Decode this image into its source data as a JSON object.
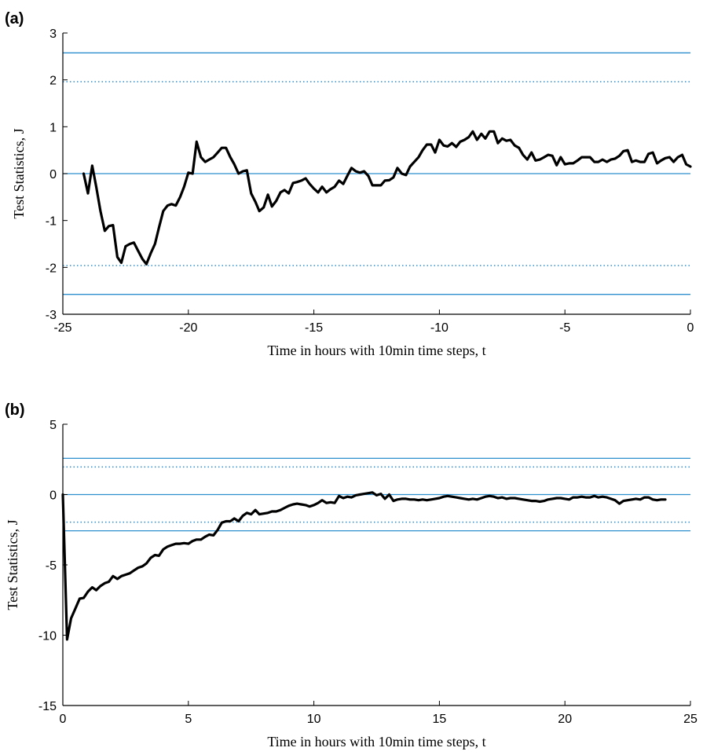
{
  "chart_data": [
    {
      "panel": "(a)",
      "type": "line",
      "xlabel": "Time in hours with 10min time steps, t",
      "ylabel": "Test Statistics, J",
      "xlim": [
        -25,
        0
      ],
      "ylim": [
        -3,
        3
      ],
      "xticks": [
        "-25",
        "-20",
        "-15",
        "-10",
        "-5",
        "0"
      ],
      "xtick_values": [
        -25,
        -20,
        -15,
        -10,
        -5,
        0
      ],
      "yticks": [
        "-3",
        "-2",
        "-1",
        "0",
        "1",
        "2",
        "3"
      ],
      "ytick_values": [
        -3,
        -2,
        -1,
        0,
        1,
        2,
        3
      ],
      "reference_lines": [
        {
          "y": 2.576,
          "style": "solid"
        },
        {
          "y": 1.96,
          "style": "dotted"
        },
        {
          "y": 0,
          "style": "solid"
        },
        {
          "y": -1.96,
          "style": "dotted"
        },
        {
          "y": -2.576,
          "style": "solid"
        }
      ],
      "series_color": "#000000",
      "reference_color": "#2e8fcf",
      "x": [
        -24.17,
        -24.0,
        -23.83,
        -23.67,
        -23.5,
        -23.33,
        -23.17,
        -23.0,
        -22.83,
        -22.67,
        -22.5,
        -22.33,
        -22.17,
        -22.0,
        -21.83,
        -21.67,
        -21.5,
        -21.33,
        -21.17,
        -21.0,
        -20.83,
        -20.67,
        -20.5,
        -20.33,
        -20.17,
        -20.0,
        -19.83,
        -19.67,
        -19.5,
        -19.33,
        -19.17,
        -19.0,
        -18.83,
        -18.67,
        -18.5,
        -18.33,
        -18.17,
        -18.0,
        -17.83,
        -17.67,
        -17.5,
        -17.33,
        -17.17,
        -17.0,
        -16.83,
        -16.67,
        -16.5,
        -16.33,
        -16.17,
        -16.0,
        -15.83,
        -15.67,
        -15.5,
        -15.33,
        -15.17,
        -15.0,
        -14.83,
        -14.67,
        -14.5,
        -14.33,
        -14.17,
        -14.0,
        -13.83,
        -13.67,
        -13.5,
        -13.33,
        -13.17,
        -13.0,
        -12.83,
        -12.67,
        -12.5,
        -12.33,
        -12.17,
        -12.0,
        -11.83,
        -11.67,
        -11.5,
        -11.33,
        -11.17,
        -11.0,
        -10.83,
        -10.67,
        -10.5,
        -10.33,
        -10.17,
        -10.0,
        -9.83,
        -9.67,
        -9.5,
        -9.33,
        -9.17,
        -9.0,
        -8.83,
        -8.67,
        -8.5,
        -8.33,
        -8.17,
        -8.0,
        -7.83,
        -7.67,
        -7.5,
        -7.33,
        -7.17,
        -7.0,
        -6.83,
        -6.67,
        -6.5,
        -6.33,
        -6.17,
        -6.0,
        -5.83,
        -5.67,
        -5.5,
        -5.33,
        -5.17,
        -5.0,
        -4.83,
        -4.67,
        -4.5,
        -4.33,
        -4.17,
        -4.0,
        -3.83,
        -3.67,
        -3.5,
        -3.33,
        -3.17,
        -3.0,
        -2.83,
        -2.67,
        -2.5,
        -2.33,
        -2.17,
        -2.0,
        -1.83,
        -1.67,
        -1.5,
        -1.33,
        -1.17,
        -1.0,
        -0.83,
        -0.67,
        -0.5,
        -0.33,
        -0.17,
        0.0
      ],
      "y": [
        0.0,
        -0.42,
        0.17,
        -0.28,
        -0.8,
        -1.22,
        -1.12,
        -1.1,
        -1.78,
        -1.9,
        -1.55,
        -1.5,
        -1.47,
        -1.65,
        -1.82,
        -1.93,
        -1.7,
        -1.5,
        -1.15,
        -0.8,
        -0.68,
        -0.65,
        -0.68,
        -0.5,
        -0.28,
        0.02,
        0.0,
        0.68,
        0.35,
        0.25,
        0.3,
        0.35,
        0.45,
        0.55,
        0.55,
        0.35,
        0.2,
        0.0,
        0.05,
        0.07,
        -0.42,
        -0.6,
        -0.8,
        -0.72,
        -0.45,
        -0.7,
        -0.58,
        -0.4,
        -0.35,
        -0.42,
        -0.2,
        -0.18,
        -0.15,
        -0.1,
        -0.22,
        -0.32,
        -0.4,
        -0.28,
        -0.4,
        -0.33,
        -0.28,
        -0.15,
        -0.22,
        -0.05,
        0.12,
        0.05,
        0.02,
        0.05,
        -0.05,
        -0.25,
        -0.25,
        -0.25,
        -0.15,
        -0.14,
        -0.08,
        0.12,
        0.0,
        -0.03,
        0.15,
        0.25,
        0.35,
        0.5,
        0.62,
        0.62,
        0.45,
        0.72,
        0.6,
        0.58,
        0.65,
        0.57,
        0.68,
        0.72,
        0.78,
        0.9,
        0.72,
        0.85,
        0.75,
        0.9,
        0.9,
        0.65,
        0.75,
        0.7,
        0.72,
        0.6,
        0.55,
        0.4,
        0.3,
        0.45,
        0.28,
        0.3,
        0.35,
        0.4,
        0.38,
        0.18,
        0.35,
        0.2,
        0.22,
        0.22,
        0.28,
        0.35,
        0.35,
        0.35,
        0.25,
        0.25,
        0.3,
        0.25,
        0.3,
        0.32,
        0.38,
        0.48,
        0.5,
        0.25,
        0.28,
        0.25,
        0.25,
        0.42,
        0.45,
        0.22,
        0.28,
        0.33,
        0.35,
        0.25,
        0.35,
        0.4,
        0.2,
        0.15
      ]
    },
    {
      "panel": "(b)",
      "type": "line",
      "xlabel": "Time in hours with 10min time steps, t",
      "ylabel": "Test Statistics, J",
      "xlim": [
        0,
        25
      ],
      "ylim": [
        -15,
        5
      ],
      "xticks": [
        "0",
        "5",
        "10",
        "15",
        "20",
        "25"
      ],
      "xtick_values": [
        0,
        5,
        10,
        15,
        20,
        25
      ],
      "yticks": [
        "-15",
        "-10",
        "-5",
        "0",
        "5"
      ],
      "ytick_values": [
        -15,
        -10,
        -5,
        0,
        5
      ],
      "reference_lines": [
        {
          "y": 2.576,
          "style": "solid"
        },
        {
          "y": 1.96,
          "style": "dotted"
        },
        {
          "y": 0,
          "style": "solid"
        },
        {
          "y": -1.96,
          "style": "dotted"
        },
        {
          "y": -2.576,
          "style": "solid"
        }
      ],
      "series_color": "#000000",
      "reference_color": "#2e8fcf",
      "x": [
        0.0,
        0.17,
        0.33,
        0.5,
        0.67,
        0.83,
        1.0,
        1.17,
        1.33,
        1.5,
        1.67,
        1.83,
        2.0,
        2.17,
        2.33,
        2.5,
        2.67,
        2.83,
        3.0,
        3.17,
        3.33,
        3.5,
        3.67,
        3.83,
        4.0,
        4.17,
        4.33,
        4.5,
        4.67,
        4.83,
        5.0,
        5.17,
        5.33,
        5.5,
        5.67,
        5.83,
        6.0,
        6.17,
        6.33,
        6.5,
        6.67,
        6.83,
        7.0,
        7.17,
        7.33,
        7.5,
        7.67,
        7.83,
        8.0,
        8.17,
        8.33,
        8.5,
        8.67,
        8.83,
        9.0,
        9.17,
        9.33,
        9.5,
        9.67,
        9.83,
        10.0,
        10.17,
        10.33,
        10.5,
        10.67,
        10.83,
        11.0,
        11.17,
        11.33,
        11.5,
        11.67,
        11.83,
        12.0,
        12.17,
        12.33,
        12.5,
        12.67,
        12.83,
        13.0,
        13.17,
        13.33,
        13.5,
        13.67,
        13.83,
        14.0,
        14.17,
        14.33,
        14.5,
        14.67,
        14.83,
        15.0,
        15.17,
        15.33,
        15.5,
        15.67,
        15.83,
        16.0,
        16.17,
        16.33,
        16.5,
        16.67,
        16.83,
        17.0,
        17.17,
        17.33,
        17.5,
        17.67,
        17.83,
        18.0,
        18.17,
        18.33,
        18.5,
        18.67,
        18.83,
        19.0,
        19.17,
        19.33,
        19.5,
        19.67,
        19.83,
        20.0,
        20.17,
        20.33,
        20.5,
        20.67,
        20.83,
        21.0,
        21.17,
        21.33,
        21.5,
        21.67,
        21.83,
        22.0,
        22.17,
        22.33,
        22.5,
        22.67,
        22.83,
        23.0,
        23.17,
        23.33,
        23.5,
        23.67,
        23.83,
        24.0
      ],
      "y": [
        0.0,
        -10.3,
        -8.8,
        -8.1,
        -7.4,
        -7.35,
        -6.9,
        -6.6,
        -6.8,
        -6.5,
        -6.3,
        -6.2,
        -5.8,
        -6.0,
        -5.8,
        -5.7,
        -5.6,
        -5.4,
        -5.2,
        -5.1,
        -4.9,
        -4.5,
        -4.3,
        -4.35,
        -3.9,
        -3.7,
        -3.6,
        -3.5,
        -3.5,
        -3.45,
        -3.5,
        -3.3,
        -3.2,
        -3.2,
        -3.0,
        -2.85,
        -2.9,
        -2.5,
        -2.0,
        -1.9,
        -1.9,
        -1.7,
        -1.9,
        -1.5,
        -1.3,
        -1.4,
        -1.1,
        -1.4,
        -1.35,
        -1.3,
        -1.2,
        -1.2,
        -1.1,
        -0.95,
        -0.8,
        -0.7,
        -0.65,
        -0.7,
        -0.75,
        -0.85,
        -0.75,
        -0.6,
        -0.4,
        -0.6,
        -0.55,
        -0.6,
        -0.1,
        -0.25,
        -0.15,
        -0.2,
        -0.05,
        0.0,
        0.05,
        0.1,
        0.15,
        -0.05,
        0.05,
        -0.3,
        0.0,
        -0.45,
        -0.35,
        -0.3,
        -0.3,
        -0.35,
        -0.35,
        -0.4,
        -0.35,
        -0.4,
        -0.35,
        -0.3,
        -0.25,
        -0.15,
        -0.1,
        -0.15,
        -0.2,
        -0.25,
        -0.3,
        -0.35,
        -0.3,
        -0.35,
        -0.25,
        -0.15,
        -0.1,
        -0.15,
        -0.25,
        -0.2,
        -0.3,
        -0.25,
        -0.25,
        -0.3,
        -0.35,
        -0.4,
        -0.45,
        -0.45,
        -0.5,
        -0.45,
        -0.35,
        -0.3,
        -0.25,
        -0.25,
        -0.3,
        -0.35,
        -0.2,
        -0.2,
        -0.15,
        -0.2,
        -0.2,
        -0.1,
        -0.2,
        -0.15,
        -0.2,
        -0.3,
        -0.4,
        -0.65,
        -0.45,
        -0.4,
        -0.35,
        -0.3,
        -0.35,
        -0.2,
        -0.2,
        -0.35,
        -0.4,
        -0.35,
        -0.35
      ]
    }
  ]
}
